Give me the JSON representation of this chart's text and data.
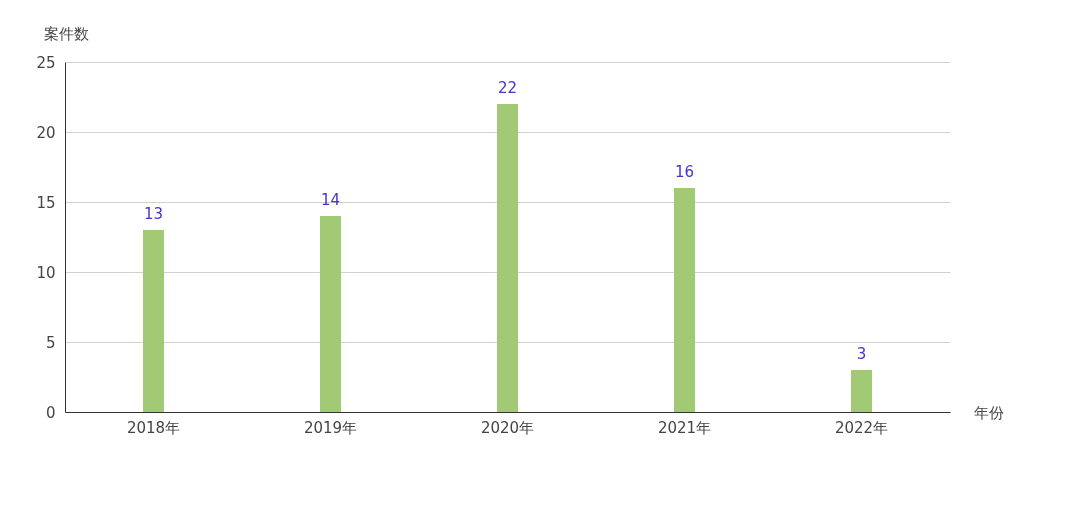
{
  "chart_data": {
    "type": "bar",
    "ylabel": "案件数",
    "xlabel": "年份",
    "categories": [
      "2018年",
      "2019年",
      "2020年",
      "2021年",
      "2022年"
    ],
    "values": [
      13,
      14,
      22,
      16,
      3
    ],
    "color": "#a2c974",
    "ylim": [
      0,
      25
    ],
    "yticks": [
      0,
      5,
      10,
      15,
      20,
      25
    ],
    "grid": "y",
    "data_labels": true
  }
}
